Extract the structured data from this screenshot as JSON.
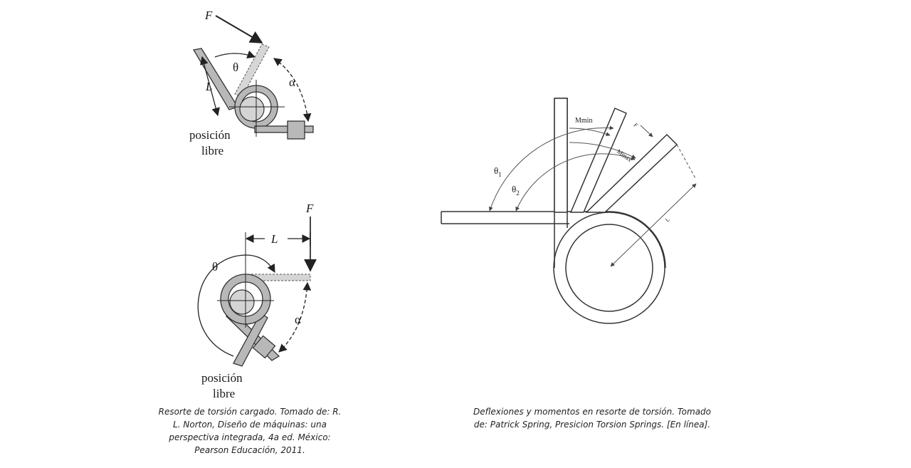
{
  "figure_left_top": {
    "force_label": "F",
    "angle_theta": "θ",
    "angle_alpha": "α",
    "length_label": "L",
    "free_position_line1": "posición",
    "free_position_line2": "libre"
  },
  "figure_left_bottom": {
    "force_label": "F",
    "length_label": "L",
    "angle_theta": "θ",
    "angle_alpha": "α",
    "free_position_line1": "posición",
    "free_position_line2": "libre"
  },
  "figure_right": {
    "theta1_base": "θ",
    "theta1_sub": "1",
    "theta2_base": "θ",
    "theta2_sub": "2",
    "mmin_label": "Mmin",
    "mmax_label": "Mmax",
    "force_label": "F",
    "length_label": "L"
  },
  "captions": {
    "left_line1": "Resorte de torsión cargado. Tomado de: R.",
    "left_line2": "L. Norton, Diseño de máquinas: una",
    "left_line3": "perspectiva integrada, 4a ed. México:",
    "left_line4": "Pearson Educación, 2011.",
    "right_line1": "Deflexiones y momentos en resorte de torsión. Tomado",
    "right_line2": "de: Patrick Spring, Presicion Torsion Springs. [En línea]."
  },
  "colors": {
    "spring_fill": "#b8b8b8",
    "spring_stroke": "#333333",
    "dashed_arm": "#d0d0d0",
    "line": "#222222"
  }
}
